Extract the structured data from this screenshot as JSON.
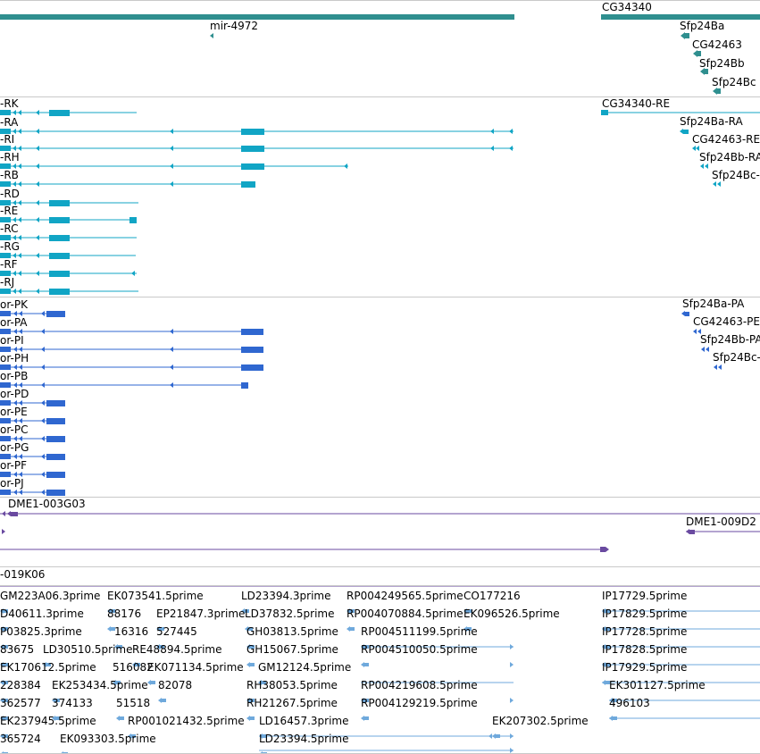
{
  "colors": {
    "gene": "#2f8f8f",
    "transcript": "#11a5c5",
    "protein": "#2f67d0",
    "clone": "#6a4aa0",
    "est": "#6fa9dc"
  },
  "tracks": {
    "genes": [
      {
        "label": "mir-4972"
      },
      {
        "label": "CG34340"
      },
      {
        "label": "Sfp24Ba"
      },
      {
        "label": "CG42463"
      },
      {
        "label": "Sfp24Bb"
      },
      {
        "label": "Sfp24Bc"
      }
    ],
    "transcripts": [
      {
        "label": "-RK"
      },
      {
        "label": "-RA"
      },
      {
        "label": "-RI"
      },
      {
        "label": "-RH"
      },
      {
        "label": "-RB"
      },
      {
        "label": "-RD"
      },
      {
        "label": "-RE"
      },
      {
        "label": "-RC"
      },
      {
        "label": "-RG"
      },
      {
        "label": "-RF"
      },
      {
        "label": "-RJ"
      },
      {
        "label": "CG34340-RE"
      },
      {
        "label": "Sfp24Ba-RA"
      },
      {
        "label": "CG42463-RE"
      },
      {
        "label": "Sfp24Bb-RA"
      },
      {
        "label": "Sfp24Bc-"
      }
    ],
    "proteins": [
      {
        "label": "or-PK"
      },
      {
        "label": "or-PA"
      },
      {
        "label": "or-PI"
      },
      {
        "label": "or-PH"
      },
      {
        "label": "or-PB"
      },
      {
        "label": "or-PD"
      },
      {
        "label": "or-PE"
      },
      {
        "label": "or-PC"
      },
      {
        "label": "or-PG"
      },
      {
        "label": "or-PF"
      },
      {
        "label": "or-PJ"
      },
      {
        "label": "Sfp24Ba-PA"
      },
      {
        "label": "CG42463-PE"
      },
      {
        "label": "Sfp24Bb-PA"
      },
      {
        "label": "Sfp24Bc-"
      }
    ],
    "clones": [
      {
        "label": "DME1-003G03"
      },
      {
        "label": "DME1-009D2"
      },
      {
        "label": "-019K06"
      }
    ],
    "ests": [
      {
        "label": "GM223A06.3prime"
      },
      {
        "label": "EK073541.5prime"
      },
      {
        "label": "LD23394.3prime"
      },
      {
        "label": "RP004249565.5prime"
      },
      {
        "label": "CO177216"
      },
      {
        "label": "IP17729.5prime"
      },
      {
        "label": "D40611.3prime"
      },
      {
        "label": "88176"
      },
      {
        "label": "EP21847.3prime"
      },
      {
        "label": "LD37832.5prime"
      },
      {
        "label": "RP004070884.5prime"
      },
      {
        "label": "EK096526.5prime"
      },
      {
        "label": "IP17829.5prime"
      },
      {
        "label": "P03825.3prime"
      },
      {
        "label": "16316"
      },
      {
        "label": "527445"
      },
      {
        "label": "GH03813.5prime"
      },
      {
        "label": "RP004511199.5prime"
      },
      {
        "label": "IP17728.5prime"
      },
      {
        "label": "83675"
      },
      {
        "label": "LD30510.5prime"
      },
      {
        "label": "RE48894.5prime"
      },
      {
        "label": "GH15067.5prime"
      },
      {
        "label": "RP004510050.5prime"
      },
      {
        "label": "IP17828.5prime"
      },
      {
        "label": "EK170612.5prime"
      },
      {
        "label": "516082"
      },
      {
        "label": "EK071134.5prime"
      },
      {
        "label": "GM12124.5prime"
      },
      {
        "label": "IP17929.5prime"
      },
      {
        "label": "228384"
      },
      {
        "label": "EK253434.5prime"
      },
      {
        "label": "82078"
      },
      {
        "label": "RH38053.5prime"
      },
      {
        "label": "RP004219608.5prime"
      },
      {
        "label": "EK301127.5prime"
      },
      {
        "label": "362577"
      },
      {
        "label": "374133"
      },
      {
        "label": "51518"
      },
      {
        "label": "RH21267.5prime"
      },
      {
        "label": "RP004129219.5prime"
      },
      {
        "label": "496103"
      },
      {
        "label": "EK237945.5prime"
      },
      {
        "label": "RP001021432.5prime"
      },
      {
        "label": "LD16457.3prime"
      },
      {
        "label": "EK207302.5prime"
      },
      {
        "label": "365724"
      },
      {
        "label": "EK093303.5prime"
      },
      {
        "label": "LD23394.5prime"
      }
    ]
  }
}
